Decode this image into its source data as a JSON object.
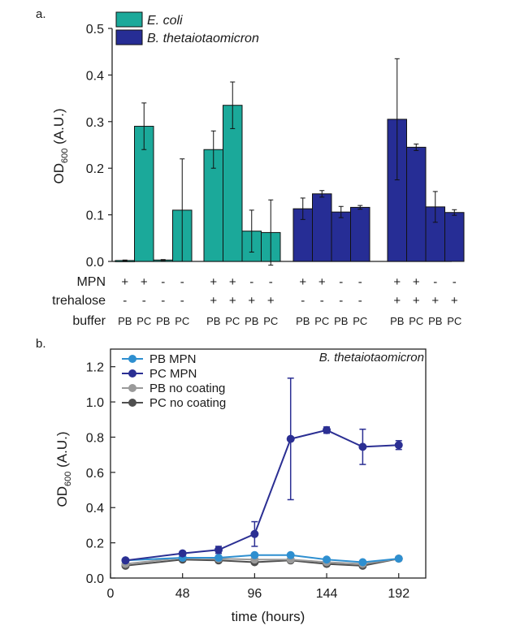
{
  "chart_data": [
    {
      "panel_label": "a.",
      "type": "bar",
      "ylabel_main": "OD",
      "ylabel_sub": "600",
      "ylabel_unit": " (A.U.)",
      "ylim": [
        0,
        0.5
      ],
      "yticks": [
        "0.0",
        "0.1",
        "0.2",
        "0.3",
        "0.4",
        "0.5"
      ],
      "grid": false,
      "legend_position": "top-left",
      "series": [
        {
          "name": "E. coli",
          "color": "#1ba99a"
        },
        {
          "name": "B. thetaiotaomicron",
          "color": "#262d95"
        }
      ],
      "row_labels": [
        "MPN",
        "trehalose",
        "buffer"
      ],
      "bars": [
        {
          "series": 0,
          "value": 0.002,
          "err": 0.001,
          "mpn": "+",
          "trehalose": "-",
          "buffer": "PB"
        },
        {
          "series": 0,
          "value": 0.29,
          "err": 0.05,
          "mpn": "+",
          "trehalose": "-",
          "buffer": "PC"
        },
        {
          "series": 0,
          "value": 0.003,
          "err": 0.001,
          "mpn": "-",
          "trehalose": "-",
          "buffer": "PB"
        },
        {
          "series": 0,
          "value": 0.11,
          "err": 0.11,
          "mpn": "-",
          "trehalose": "-",
          "buffer": "PC"
        },
        {
          "series": 0,
          "value": 0.24,
          "err": 0.04,
          "mpn": "+",
          "trehalose": "+",
          "buffer": "PB"
        },
        {
          "series": 0,
          "value": 0.335,
          "err": 0.05,
          "mpn": "+",
          "trehalose": "+",
          "buffer": "PC"
        },
        {
          "series": 0,
          "value": 0.065,
          "err": 0.045,
          "mpn": "-",
          "trehalose": "+",
          "buffer": "PB"
        },
        {
          "series": 0,
          "value": 0.062,
          "err": 0.07,
          "mpn": "-",
          "trehalose": "+",
          "buffer": "PC"
        },
        {
          "series": 1,
          "value": 0.113,
          "err": 0.023,
          "mpn": "+",
          "trehalose": "-",
          "buffer": "PB"
        },
        {
          "series": 1,
          "value": 0.145,
          "err": 0.007,
          "mpn": "+",
          "trehalose": "-",
          "buffer": "PC"
        },
        {
          "series": 1,
          "value": 0.106,
          "err": 0.012,
          "mpn": "-",
          "trehalose": "-",
          "buffer": "PB"
        },
        {
          "series": 1,
          "value": 0.116,
          "err": 0.004,
          "mpn": "-",
          "trehalose": "-",
          "buffer": "PC"
        },
        {
          "series": 1,
          "value": 0.305,
          "err": 0.13,
          "mpn": "+",
          "trehalose": "+",
          "buffer": "PB"
        },
        {
          "series": 1,
          "value": 0.245,
          "err": 0.007,
          "mpn": "+",
          "trehalose": "+",
          "buffer": "PC"
        },
        {
          "series": 1,
          "value": 0.117,
          "err": 0.033,
          "mpn": "-",
          "trehalose": "+",
          "buffer": "PB"
        },
        {
          "series": 1,
          "value": 0.105,
          "err": 0.006,
          "mpn": "-",
          "trehalose": "+",
          "buffer": "PC"
        }
      ]
    },
    {
      "panel_label": "b.",
      "type": "line",
      "annotation": "B. thetaiotaomicron",
      "xlabel": "time (hours)",
      "ylabel_main": "OD",
      "ylabel_sub": "600",
      "ylabel_unit": " (A.U.)",
      "xlim": [
        0,
        210
      ],
      "ylim": [
        0,
        1.3
      ],
      "xticks": [
        "0",
        "48",
        "96",
        "144",
        "192"
      ],
      "yticks": [
        "0.0",
        "0.2",
        "0.4",
        "0.6",
        "0.8",
        "1.0",
        "1.2"
      ],
      "grid": false,
      "legend_position": "top-left",
      "x": [
        10,
        48,
        72,
        96,
        120,
        144,
        168,
        192
      ],
      "series": [
        {
          "name": "PB MPN",
          "color": "#2e8fd0",
          "values": [
            0.1,
            0.115,
            0.115,
            0.13,
            0.13,
            0.105,
            0.09,
            0.11
          ],
          "err": [
            0,
            0,
            0,
            0,
            0,
            0,
            0,
            0
          ]
        },
        {
          "name": "PC MPN",
          "color": "#2b2f93",
          "values": [
            0.1,
            0.14,
            0.16,
            0.25,
            0.79,
            0.84,
            0.745,
            0.755
          ],
          "err": [
            0,
            0,
            0.02,
            0.07,
            0.345,
            0.018,
            0.1,
            0.025
          ]
        },
        {
          "name": "PB no coating",
          "color": "#9a9a9a",
          "values": [
            0.08,
            0.115,
            0.11,
            0.105,
            0.105,
            0.09,
            0.08,
            0.11
          ],
          "err": [
            0,
            0,
            0,
            0,
            0,
            0,
            0,
            0
          ]
        },
        {
          "name": "PC no coating",
          "color": "#4f4f4f",
          "values": [
            0.07,
            0.105,
            0.1,
            0.09,
            0.1,
            0.08,
            0.07,
            0.11
          ],
          "err": [
            0,
            0,
            0,
            0,
            0,
            0,
            0,
            0
          ]
        }
      ]
    }
  ]
}
